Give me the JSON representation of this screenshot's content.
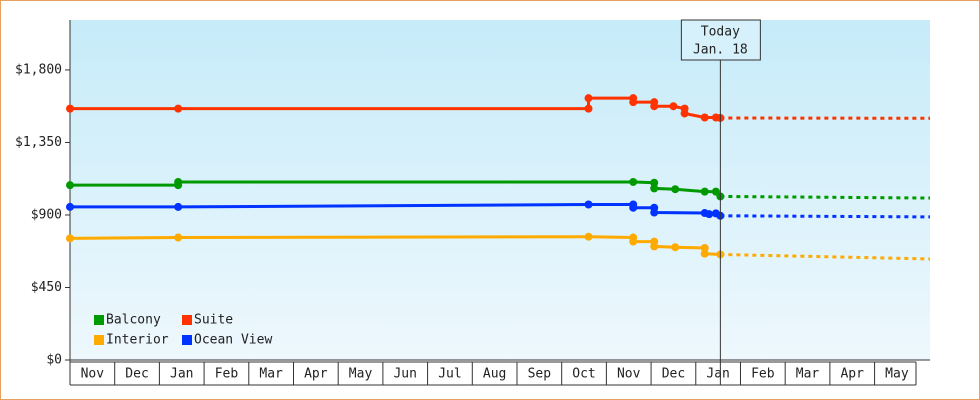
{
  "chart_data": {
    "type": "line",
    "ylim": [
      0,
      2110
    ],
    "yticks": [
      {
        "value": 0,
        "label": "$0"
      },
      {
        "value": 450,
        "label": "$450"
      },
      {
        "value": 900,
        "label": "$900"
      },
      {
        "value": 1350,
        "label": "$1,350"
      },
      {
        "value": 1800,
        "label": "$1,800"
      }
    ],
    "xlim": [
      0,
      19.24
    ],
    "xticks": [
      {
        "value": 0,
        "label": "Nov"
      },
      {
        "value": 1,
        "label": "Dec"
      },
      {
        "value": 2,
        "label": "Jan"
      },
      {
        "value": 3,
        "label": "Feb"
      },
      {
        "value": 4,
        "label": "Mar"
      },
      {
        "value": 5,
        "label": "Apr"
      },
      {
        "value": 6,
        "label": "May"
      },
      {
        "value": 7,
        "label": "Jun"
      },
      {
        "value": 8,
        "label": "Jul"
      },
      {
        "value": 9,
        "label": "Aug"
      },
      {
        "value": 10,
        "label": "Sep"
      },
      {
        "value": 11,
        "label": "Oct"
      },
      {
        "value": 12,
        "label": "Nov"
      },
      {
        "value": 13,
        "label": "Dec"
      },
      {
        "value": 14,
        "label": "Jan"
      },
      {
        "value": 15,
        "label": "Feb"
      },
      {
        "value": 16,
        "label": "Mar"
      },
      {
        "value": 17,
        "label": "Apr"
      },
      {
        "value": 18,
        "label": "May"
      }
    ],
    "annotation": {
      "x": 14.55,
      "lines": [
        "Today",
        "Jan. 18"
      ]
    },
    "series": [
      {
        "name": "Balcony",
        "color": "#009900",
        "x": [
          0,
          2.42,
          2.42,
          12.6,
          13.07,
          13.07,
          13.54,
          14.2,
          14.45,
          14.55
        ],
        "values": [
          1085,
          1085,
          1105,
          1105,
          1100,
          1065,
          1060,
          1045,
          1045,
          1015
        ],
        "forecast_x": [
          14.55,
          19.24
        ],
        "forecast_values": [
          1015,
          1005
        ]
      },
      {
        "name": "Suite",
        "color": "#ff3300",
        "x": [
          0,
          2.42,
          11.6,
          11.6,
          12.6,
          12.6,
          13.07,
          13.07,
          13.5,
          13.75,
          13.75,
          14.2,
          14.45,
          14.55
        ],
        "values": [
          1560,
          1560,
          1560,
          1625,
          1625,
          1600,
          1600,
          1575,
          1575,
          1560,
          1530,
          1505,
          1505,
          1502
        ],
        "forecast_x": [
          14.55,
          19.24
        ],
        "forecast_values": [
          1502,
          1500
        ]
      },
      {
        "name": "Interior",
        "color": "#ffaa00",
        "x": [
          0,
          2.42,
          11.6,
          12.6,
          12.6,
          13.07,
          13.07,
          13.54,
          14.2,
          14.2,
          14.55
        ],
        "values": [
          755,
          760,
          765,
          760,
          735,
          735,
          705,
          700,
          695,
          660,
          655
        ],
        "forecast_x": [
          14.55,
          19.24
        ],
        "forecast_values": [
          655,
          627
        ]
      },
      {
        "name": "Ocean View",
        "color": "#0033ff",
        "x": [
          0,
          2.42,
          11.6,
          12.6,
          12.6,
          13.07,
          13.07,
          14.2,
          14.3,
          14.45,
          14.55
        ],
        "values": [
          950,
          950,
          965,
          965,
          945,
          945,
          915,
          912,
          905,
          910,
          895
        ],
        "forecast_x": [
          14.55,
          19.24
        ],
        "forecast_values": [
          895,
          888
        ]
      }
    ]
  }
}
